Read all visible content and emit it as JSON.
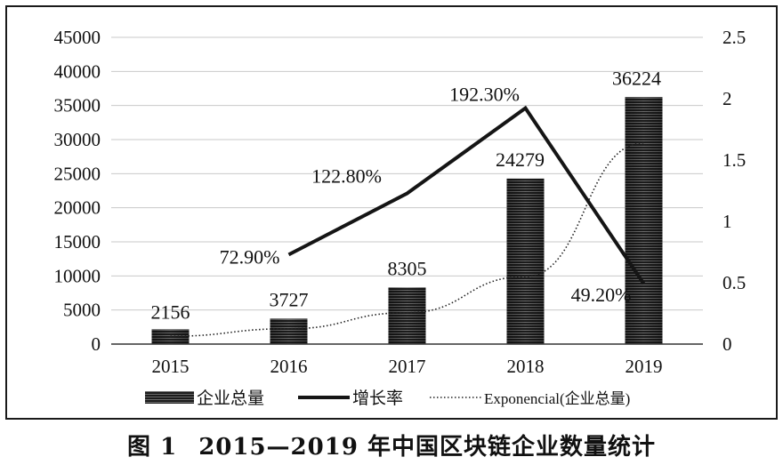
{
  "chart_data": {
    "type": "bar",
    "categories": [
      "2015",
      "2016",
      "2017",
      "2018",
      "2019"
    ],
    "series": [
      {
        "name": "企业总量",
        "type": "bar",
        "axis": "left",
        "values": [
          2156,
          3727,
          8305,
          24279,
          36224
        ],
        "labels": [
          "2156",
          "3727",
          "8305",
          "24279",
          "36224"
        ]
      },
      {
        "name": "增长率",
        "type": "line",
        "axis": "right",
        "values": [
          null,
          0.729,
          1.228,
          1.923,
          0.492
        ],
        "labels": [
          "",
          "72.90%",
          "122.80%",
          "192.30%",
          "49.20%"
        ]
      },
      {
        "name": "Exponencial(企业总量)",
        "type": "trendline",
        "style": "dotted",
        "axis": "left",
        "values": [
          1150,
          2250,
          4600,
          9900,
          29500
        ]
      }
    ],
    "yleft": {
      "min": 0,
      "max": 45000,
      "step": 5000,
      "ticks": [
        "0",
        "5000",
        "10000",
        "15000",
        "20000",
        "25000",
        "30000",
        "35000",
        "40000",
        "45000"
      ]
    },
    "yright": {
      "min": 0,
      "max": 2.5,
      "step": 0.5,
      "ticks": [
        "0",
        "0.5",
        "1",
        "1.5",
        "2",
        "2.5"
      ]
    },
    "grid": true,
    "legend": "bottom",
    "colors": {
      "bar": "#2b2b2b",
      "line": "#151515",
      "grid": "#c9c9c9",
      "trend": "#222222"
    }
  },
  "caption": {
    "label": "图 1",
    "text": "2015—2019 年中国区块链企业数量统计"
  }
}
